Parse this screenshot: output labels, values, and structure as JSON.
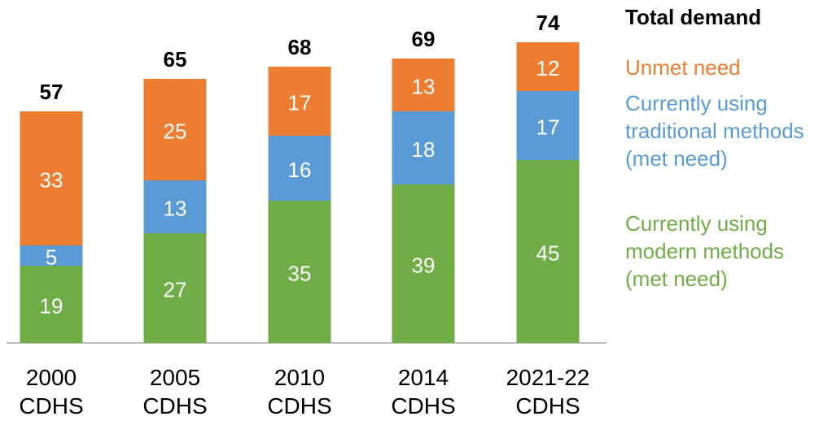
{
  "chart_data": {
    "type": "stacked_bar",
    "categories": [
      "2000 CDHS",
      "2005 CDHS",
      "2010 CDHS",
      "2014 CDHS",
      "2021-22 CDHS"
    ],
    "series": [
      {
        "name": "Currently using modern methods (met need)",
        "color": "#70ad47",
        "values": [
          19,
          27,
          35,
          39,
          45
        ]
      },
      {
        "name": "Currently using traditional methods (met need)",
        "color": "#5b9bd5",
        "values": [
          5,
          13,
          16,
          18,
          17
        ]
      },
      {
        "name": "Unmet need",
        "color": "#ed7d31",
        "values": [
          33,
          25,
          17,
          13,
          12
        ]
      }
    ],
    "totals_label": "Total demand",
    "totals": [
      57,
      65,
      68,
      69,
      74
    ]
  }
}
